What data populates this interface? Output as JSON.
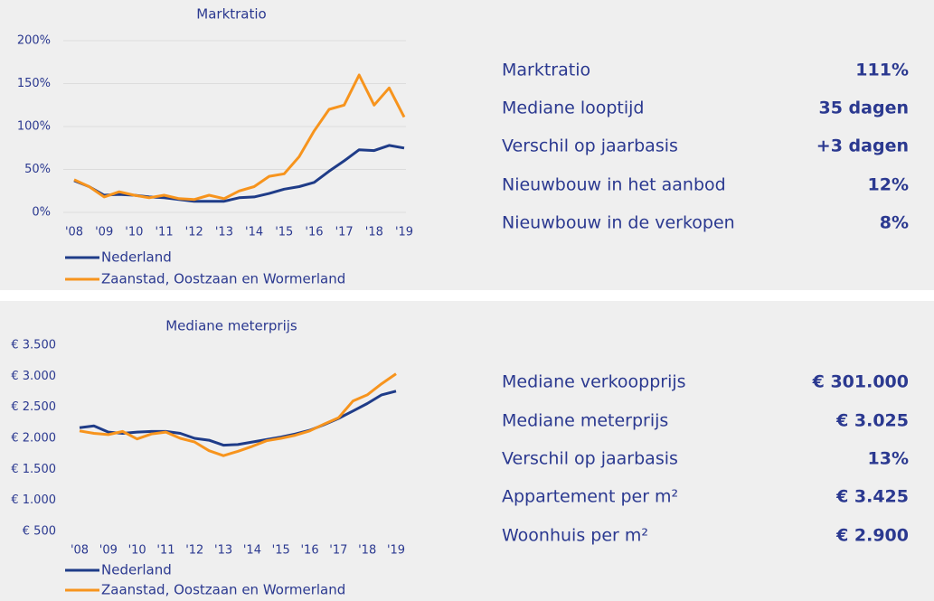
{
  "chart_data": [
    {
      "type": "line",
      "title": "Marktratio",
      "x": [
        2008,
        2008.5,
        2009,
        2009.5,
        2010,
        2010.5,
        2011,
        2011.5,
        2012,
        2012.5,
        2013,
        2013.5,
        2014,
        2014.5,
        2015,
        2015.5,
        2016,
        2016.5,
        2017,
        2017.5,
        2018,
        2018.5,
        2019
      ],
      "xlim": [
        2008,
        2019
      ],
      "xticks": [
        {
          "value": 2008,
          "label": "'08"
        },
        {
          "value": 2009,
          "label": "'09"
        },
        {
          "value": 2010,
          "label": "'10"
        },
        {
          "value": 2011,
          "label": "'11"
        },
        {
          "value": 2012,
          "label": "'12"
        },
        {
          "value": 2013,
          "label": "'13"
        },
        {
          "value": 2014,
          "label": "'14"
        },
        {
          "value": 2015,
          "label": "'15"
        },
        {
          "value": 2016,
          "label": "'16"
        },
        {
          "value": 2017,
          "label": "'17"
        },
        {
          "value": 2018,
          "label": "'18"
        },
        {
          "value": 2019,
          "label": "'19"
        }
      ],
      "ylim": [
        0,
        200
      ],
      "yticks": [
        {
          "value": 0,
          "label": "0%"
        },
        {
          "value": 50,
          "label": "50%"
        },
        {
          "value": 100,
          "label": "100%"
        },
        {
          "value": 150,
          "label": "150%"
        },
        {
          "value": 200,
          "label": "200%"
        }
      ],
      "grid": true,
      "series": [
        {
          "name": "Nederland",
          "color": "#1f3c88",
          "values": [
            37,
            30,
            20,
            21,
            20,
            18,
            17,
            15,
            13,
            13,
            13,
            17,
            18,
            22,
            27,
            30,
            35,
            48,
            60,
            73,
            72,
            78,
            75
          ]
        },
        {
          "name": "Zaanstad, Oostzaan en Wormerland",
          "color": "#f7941d",
          "values": [
            38,
            30,
            18,
            24,
            20,
            17,
            20,
            16,
            15,
            20,
            16,
            25,
            30,
            42,
            45,
            65,
            95,
            120,
            125,
            160,
            125,
            145,
            111
          ]
        }
      ]
    },
    {
      "type": "line",
      "title": "Mediane meterprijs",
      "x": [
        2008,
        2008.5,
        2009,
        2009.5,
        2010,
        2010.5,
        2011,
        2011.5,
        2012,
        2012.5,
        2013,
        2013.5,
        2014,
        2014.5,
        2015,
        2015.5,
        2016,
        2016.5,
        2017,
        2017.5,
        2018,
        2018.5,
        2019
      ],
      "xlim": [
        2008,
        2019
      ],
      "xticks": [
        {
          "value": 2008,
          "label": "'08"
        },
        {
          "value": 2009,
          "label": "'09"
        },
        {
          "value": 2010,
          "label": "'10"
        },
        {
          "value": 2011,
          "label": "'11"
        },
        {
          "value": 2012,
          "label": "'12"
        },
        {
          "value": 2013,
          "label": "'13"
        },
        {
          "value": 2014,
          "label": "'14"
        },
        {
          "value": 2015,
          "label": "'15"
        },
        {
          "value": 2016,
          "label": "'16"
        },
        {
          "value": 2017,
          "label": "'17"
        },
        {
          "value": 2018,
          "label": "'18"
        },
        {
          "value": 2019,
          "label": "'19"
        }
      ],
      "ylim": [
        500,
        3500
      ],
      "yticks": [
        {
          "value": 500,
          "label": "€ 500"
        },
        {
          "value": 1000,
          "label": "€ 1.000"
        },
        {
          "value": 1500,
          "label": "€ 1.500"
        },
        {
          "value": 2000,
          "label": "€ 2.000"
        },
        {
          "value": 2500,
          "label": "€ 2.500"
        },
        {
          "value": 3000,
          "label": "€ 3.000"
        },
        {
          "value": 3500,
          "label": "€ 3.500"
        }
      ],
      "grid": false,
      "series": [
        {
          "name": "Nederland",
          "color": "#1f3c88",
          "values": [
            2170,
            2200,
            2100,
            2080,
            2100,
            2110,
            2110,
            2080,
            2000,
            1970,
            1890,
            1900,
            1940,
            1980,
            2020,
            2070,
            2130,
            2220,
            2320,
            2440,
            2560,
            2700,
            2760
          ]
        },
        {
          "name": "Zaanstad, Oostzaan en Wormerland",
          "color": "#f7941d",
          "values": [
            2120,
            2080,
            2060,
            2110,
            1990,
            2070,
            2100,
            2000,
            1940,
            1800,
            1720,
            1790,
            1870,
            1960,
            2000,
            2050,
            2120,
            2230,
            2330,
            2600,
            2700,
            2880,
            3040
          ]
        }
      ]
    }
  ],
  "stats": [
    [
      {
        "label": "Marktratio",
        "value": "111%"
      },
      {
        "label": "Mediane looptijd",
        "value": "35 dagen"
      },
      {
        "label": "Verschil op jaarbasis",
        "value": "+3 dagen"
      },
      {
        "label": "Nieuwbouw in het aanbod",
        "value": "12%"
      },
      {
        "label": "Nieuwbouw in de verkopen",
        "value": "8%"
      }
    ],
    [
      {
        "label": "Mediane verkoopprijs",
        "value": "€ 301.000"
      },
      {
        "label": "Mediane meterprijs",
        "value": "€ 3.025"
      },
      {
        "label": "Verschil op jaarbasis",
        "value": "13%"
      },
      {
        "label": "Appartement per m²",
        "value": "€ 3.425"
      },
      {
        "label": "Woonhuis per m²",
        "value": "€ 2.900"
      }
    ]
  ]
}
